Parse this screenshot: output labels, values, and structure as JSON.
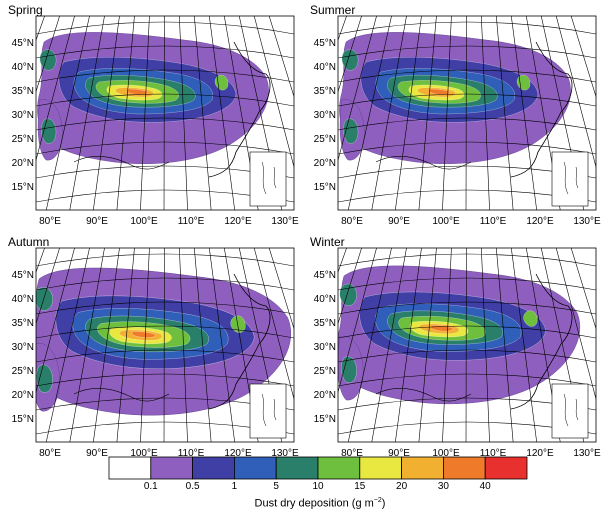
{
  "panels": [
    {
      "title": "Spring"
    },
    {
      "title": "Summer"
    },
    {
      "title": "Autumn"
    },
    {
      "title": "Winter"
    }
  ],
  "lat_labels": [
    "45°N",
    "40°N",
    "35°N",
    "30°N",
    "25°N",
    "20°N",
    "15°N"
  ],
  "lon_labels": [
    "80°E",
    "90°E",
    "100°E",
    "110°E",
    "120°E",
    "130°E"
  ],
  "legend": {
    "title": "Dust dry deposition",
    "unit": "(g m",
    "unit_exp": "−2",
    "unit_close": ")",
    "tick_labels": [
      "0.1",
      "0.5",
      "1",
      "5",
      "10",
      "15",
      "20",
      "30",
      "40"
    ],
    "colors": [
      "#ffffff",
      "#8f5fbf",
      "#3f3fa5",
      "#2f5fb8",
      "#2a7f6a",
      "#6fbf3f",
      "#e8e840",
      "#f2b030",
      "#ef7a2a",
      "#e8302f"
    ]
  }
}
